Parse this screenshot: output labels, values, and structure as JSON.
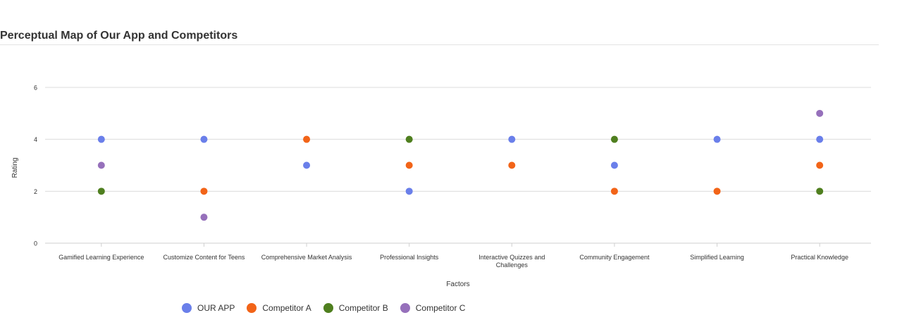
{
  "chart_data": {
    "type": "scatter",
    "title": "Perceptual Map of Our App and Competitors",
    "xlabel": "Factors",
    "ylabel": "Rating",
    "ylim": [
      0,
      6
    ],
    "yticks": [
      "0",
      "2",
      "4",
      "6"
    ],
    "grid": true,
    "legend_position": "bottom",
    "categories": [
      "Gamified Learning Experience",
      "Customize Content for Teens",
      "Comprehensive Market Analysis",
      "Professional Insights",
      "Interactive Quizzes and Challenges",
      "Community Engagement",
      "Simplified Learning",
      "Practical Knowledge"
    ],
    "series": [
      {
        "name": "OUR APP",
        "color": "#6a7fea",
        "values": [
          4,
          4,
          3,
          2,
          4,
          3,
          4,
          4
        ]
      },
      {
        "name": "Competitor A",
        "color": "#f26418",
        "values": [
          null,
          2,
          4,
          3,
          3,
          2,
          2,
          3
        ]
      },
      {
        "name": "Competitor B",
        "color": "#4f7f1f",
        "values": [
          2,
          null,
          null,
          4,
          null,
          4,
          null,
          2
        ]
      },
      {
        "name": "Competitor C",
        "color": "#9670bb",
        "values": [
          3,
          1,
          null,
          null,
          null,
          null,
          null,
          5
        ]
      }
    ]
  }
}
